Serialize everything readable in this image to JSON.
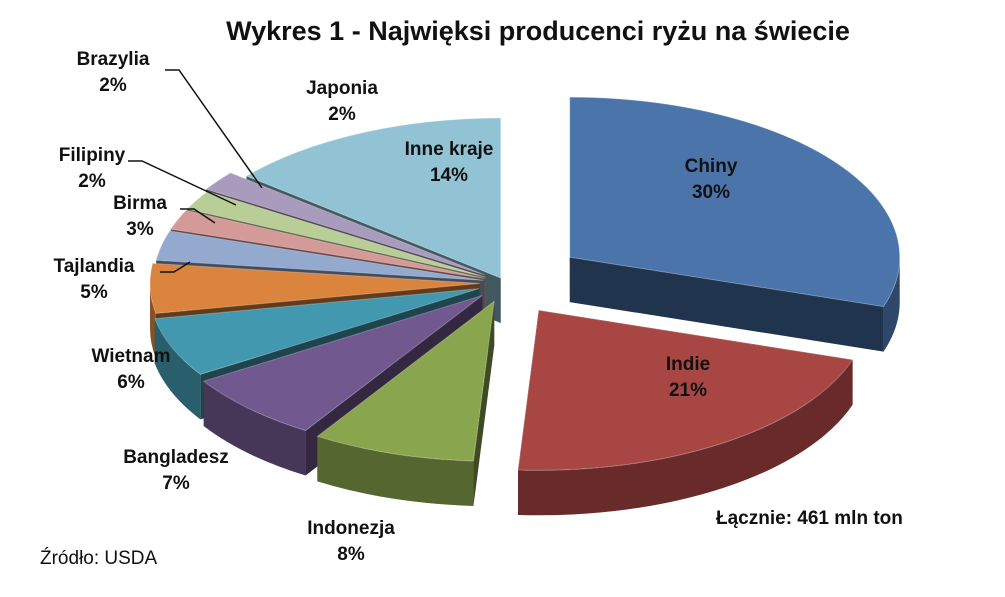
{
  "chart_data": {
    "type": "pie",
    "title": "Wykres 1 - Najwięksi producenci ryżu na świecie",
    "unit": "%",
    "slices": [
      {
        "name": "Chiny",
        "value": 30,
        "label": "30%",
        "color": "#4a74aa"
      },
      {
        "name": "Indie",
        "value": 21,
        "label": "21%",
        "color": "#a84643"
      },
      {
        "name": "Indonezja",
        "value": 8,
        "label": "8%",
        "color": "#89a54d"
      },
      {
        "name": "Bangladesz",
        "value": 7,
        "label": "7%",
        "color": "#71598f"
      },
      {
        "name": "Wietnam",
        "value": 6,
        "label": "6%",
        "color": "#4298ae"
      },
      {
        "name": "Tajlandia",
        "value": 5,
        "label": "5%",
        "color": "#db843d"
      },
      {
        "name": "Birma",
        "value": 3,
        "label": "3%",
        "color": "#93a9ce"
      },
      {
        "name": "Filipiny",
        "value": 2,
        "label": "2%",
        "color": "#d49a98"
      },
      {
        "name": "Brazylia",
        "value": 2,
        "label": "2%",
        "color": "#b9cd96"
      },
      {
        "name": "Japonia",
        "value": 2,
        "label": "2%",
        "color": "#a99bbd"
      },
      {
        "name": "Inne kraje",
        "value": 14,
        "label": "14%",
        "color": "#92c3d4"
      }
    ],
    "annotations": {
      "total": "Łącznie: 461 mln ton",
      "source": "Źródło: USDA"
    }
  }
}
